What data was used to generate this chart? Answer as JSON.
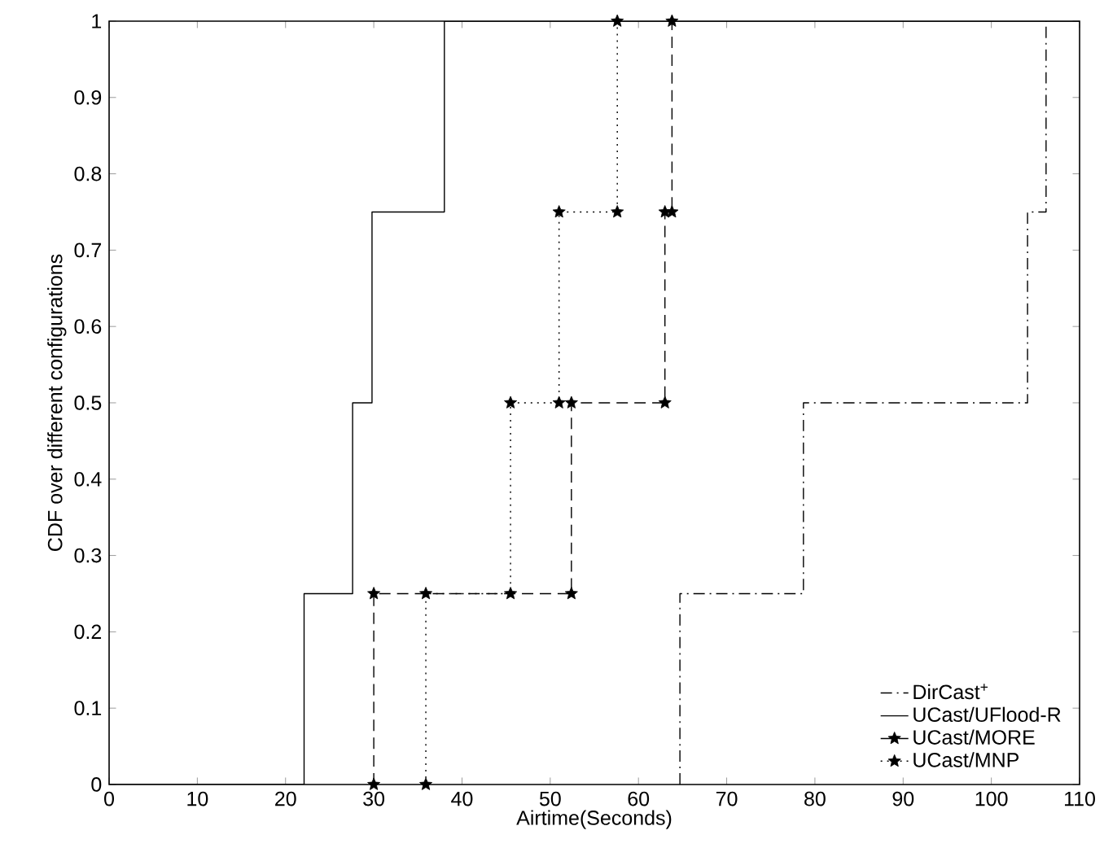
{
  "chart_data": {
    "type": "line",
    "xlabel": "Airtime(Seconds)",
    "ylabel": "CDF over different configurations",
    "xlim": [
      0,
      110
    ],
    "xticks": [
      0,
      10,
      20,
      30,
      40,
      50,
      60,
      70,
      80,
      90,
      100,
      110
    ],
    "ylim": [
      0,
      1
    ],
    "yticks": [
      0,
      0.1,
      0.2,
      0.3,
      0.4,
      0.5,
      0.6,
      0.7,
      0.8,
      0.9,
      1
    ],
    "legend": "bottom right",
    "grid": false,
    "series": [
      {
        "name": "DirCast$^{+}$",
        "color": "#000000",
        "line_style": "dashdot",
        "marker": "none",
        "x": [
          64.7,
          64.7,
          78.7,
          78.7,
          104.1,
          104.1,
          106.2,
          106.2
        ],
        "values": [
          0,
          0.25,
          0.25,
          0.5,
          0.5,
          0.75,
          0.75,
          1
        ]
      },
      {
        "name": "UCast/UFlood-R",
        "color": "#000000",
        "line_style": "solid",
        "marker": "none",
        "x": [
          0,
          22.1,
          22.1,
          27.6,
          27.6,
          29.8,
          29.8,
          38,
          38,
          110
        ],
        "values": [
          0,
          0,
          0.25,
          0.25,
          0.5,
          0.5,
          0.75,
          0.75,
          1,
          1
        ]
      },
      {
        "name": "UCast/MORE",
        "color": "#000000",
        "line_style": "dashed",
        "marker": "star",
        "x": [
          30,
          30,
          52.4,
          52.4,
          63,
          63,
          63.8,
          63.8
        ],
        "values": [
          0,
          0.25,
          0.25,
          0.5,
          0.5,
          0.75,
          0.75,
          1
        ]
      },
      {
        "name": "UCast/MNP",
        "color": "#000000",
        "line_style": "dotted",
        "marker": "star",
        "x": [
          35.9,
          35.9,
          45.5,
          45.5,
          51,
          51,
          57.6,
          57.6
        ],
        "values": [
          0,
          0.25,
          0.25,
          0.5,
          0.5,
          0.75,
          0.75,
          1
        ]
      }
    ]
  }
}
